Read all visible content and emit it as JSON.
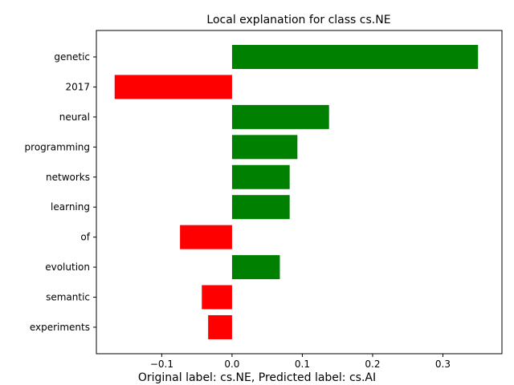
{
  "chart_data": {
    "type": "bar",
    "orientation": "horizontal",
    "title": "Local explanation for class cs.NE",
    "caption": "Original label: cs.NE, Predicted label: cs.AI",
    "categories": [
      "genetic",
      "2017",
      "neural",
      "programming",
      "networks",
      "learning",
      "of",
      "evolution",
      "semantic",
      "experiments"
    ],
    "values": [
      0.35,
      -0.167,
      0.138,
      0.093,
      0.082,
      0.082,
      -0.074,
      0.068,
      -0.043,
      -0.034
    ],
    "xticks": [
      -0.1,
      0.0,
      0.1,
      0.2,
      0.3
    ],
    "xtick_labels": [
      "−0.1",
      "0.0",
      "0.1",
      "0.2",
      "0.3"
    ],
    "xlim": [
      -0.193,
      0.384
    ],
    "colors": {
      "positive": "#008000",
      "negative": "#ff0000"
    },
    "grid": false
  }
}
